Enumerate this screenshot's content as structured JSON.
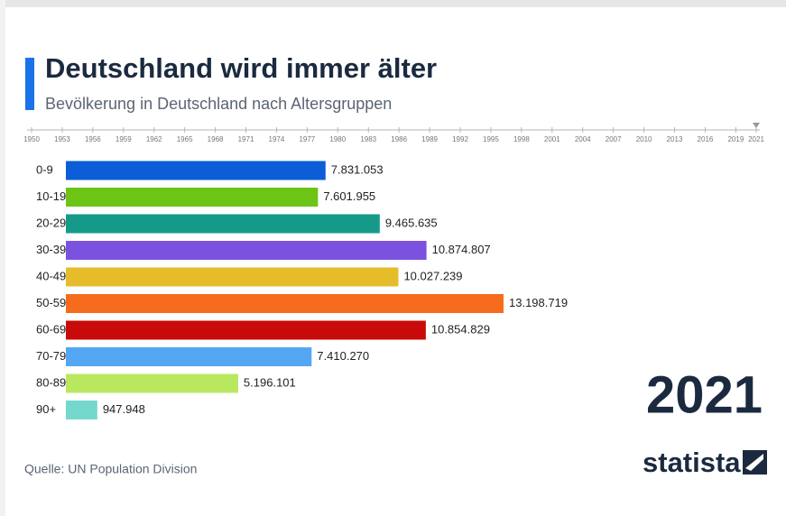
{
  "chart_data": {
    "type": "bar",
    "title": "Deutschland wird immer älter",
    "subtitle": "Bevölkerung in Deutschland nach Altersgruppen",
    "categories": [
      "0-9",
      "10-19",
      "20-29",
      "30-39",
      "40-49",
      "50-59",
      "60-69",
      "70-79",
      "80-89",
      "90+"
    ],
    "values": [
      7831053,
      7601955,
      9465635,
      10874807,
      10027239,
      13198719,
      10854829,
      7410270,
      5196101,
      947948
    ],
    "value_labels": [
      "7.831.053",
      "7.601.955",
      "9.465.635",
      "10.874.807",
      "10.027.239",
      "13.198.719",
      "10.854.829",
      "7.410.270",
      "5.196.101",
      "947.948"
    ],
    "colors": [
      "#0b5ed7",
      "#6cc417",
      "#159a8a",
      "#7b52e0",
      "#e6bc2a",
      "#f76b1c",
      "#c90a0a",
      "#55a6f2",
      "#b9e860",
      "#74d8cf"
    ],
    "timeline": {
      "xlim": [
        1950,
        2021
      ],
      "xticks": [
        1950,
        1953,
        1956,
        1959,
        1962,
        1965,
        1968,
        1971,
        1974,
        1977,
        1980,
        1983,
        1986,
        1989,
        1992,
        1995,
        1998,
        2001,
        2004,
        2007,
        2010,
        2013,
        2016,
        2019,
        2021
      ],
      "current": 2021
    },
    "source": "Quelle: UN Population Division",
    "logo": "statista"
  }
}
